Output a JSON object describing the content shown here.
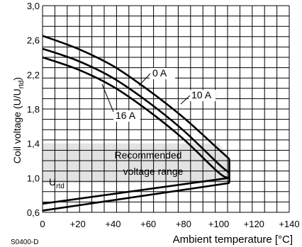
{
  "chart_data": {
    "type": "line",
    "title": "",
    "xlabel": "Ambient temperature [°C]",
    "ylabel_main": "Coil voltage (U/U",
    "ylabel_sub": "rtd",
    "ylabel_close": ")",
    "xlim": [
      0,
      140
    ],
    "ylim": [
      0.6,
      3.0
    ],
    "x_ticks": [
      {
        "value": 0,
        "label": "0"
      },
      {
        "value": 20,
        "label": "+20"
      },
      {
        "value": 40,
        "label": "+40"
      },
      {
        "value": 60,
        "label": "+60"
      },
      {
        "value": 80,
        "label": "+80"
      },
      {
        "value": 100,
        "label": "+100"
      },
      {
        "value": 120,
        "label": "+120"
      },
      {
        "value": 140,
        "label": "+140"
      }
    ],
    "y_ticks": [
      {
        "value": 0.6,
        "label": "0,6"
      },
      {
        "value": 1.0,
        "label": "1,0"
      },
      {
        "value": 1.4,
        "label": "1,4"
      },
      {
        "value": 1.8,
        "label": "1,8"
      },
      {
        "value": 2.2,
        "label": "2,2"
      },
      {
        "value": 2.6,
        "label": "2,6"
      },
      {
        "value": 3.0,
        "label": "3,0"
      }
    ],
    "grid": true,
    "series": [
      {
        "name": "0 A",
        "x": [
          0,
          20,
          40,
          60,
          80,
          100,
          106
        ],
        "y": [
          2.65,
          2.5,
          2.3,
          2.02,
          1.7,
          1.33,
          1.22
        ]
      },
      {
        "name": "10 A",
        "x": [
          0,
          20,
          40,
          60,
          80,
          100,
          106
        ],
        "y": [
          2.5,
          2.36,
          2.16,
          1.88,
          1.55,
          1.16,
          1.06
        ]
      },
      {
        "name": "16 A",
        "x": [
          0,
          20,
          40,
          60,
          80,
          100,
          106
        ],
        "y": [
          2.4,
          2.26,
          2.06,
          1.78,
          1.45,
          1.06,
          1.0
        ]
      }
    ],
    "lower_lines": [
      {
        "x": [
          0,
          106
        ],
        "y": [
          0.7,
          1.0
        ]
      },
      {
        "x": [
          0,
          106
        ],
        "y": [
          0.62,
          0.94
        ]
      }
    ],
    "region": {
      "label_line1": "Recommended",
      "label_line2": "voltage range",
      "color": "#e2e2e2",
      "polygon": [
        [
          0,
          1.4
        ],
        [
          100,
          1.4
        ],
        [
          106,
          1.22
        ],
        [
          106,
          0.94
        ],
        [
          0,
          0.94
        ]
      ]
    },
    "annotations": {
      "u_rtd_main": "U",
      "u_rtd_sub": "rtd",
      "code": "S0400-D"
    }
  }
}
